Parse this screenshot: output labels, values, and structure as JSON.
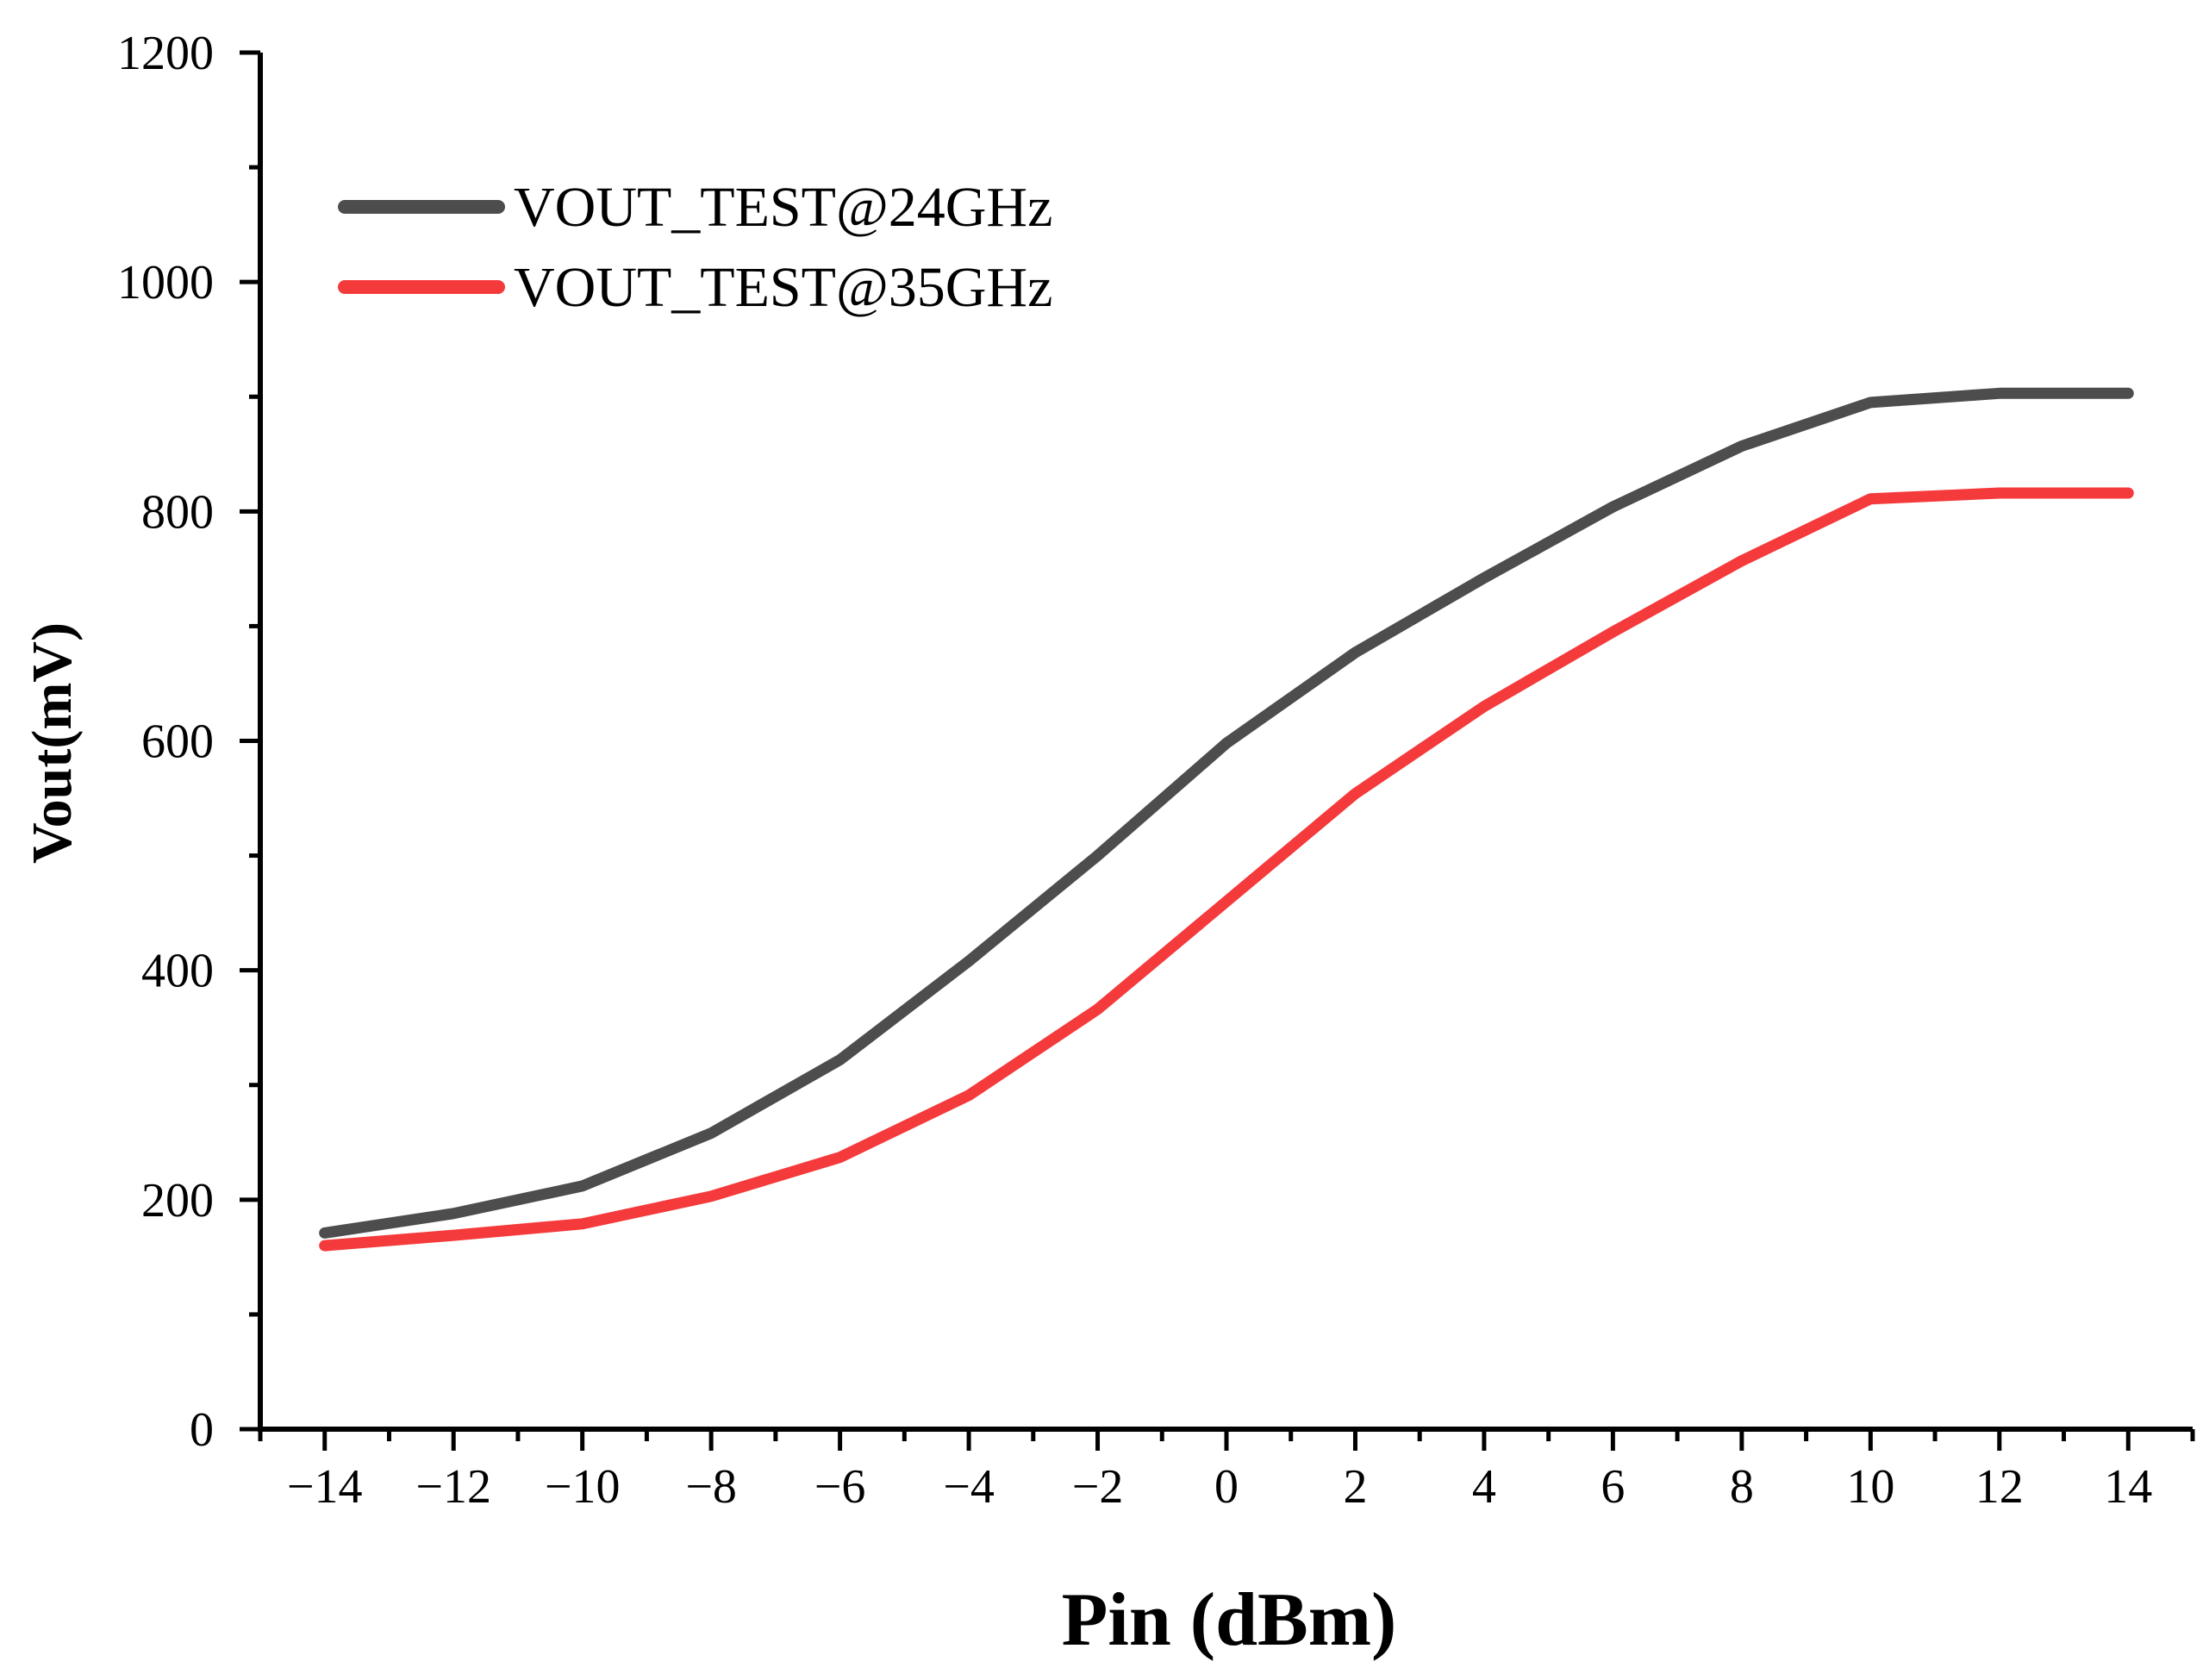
{
  "chart_data": {
    "type": "line",
    "title": "",
    "xlabel": "Pin (dBm)",
    "ylabel": "Vout(mV)",
    "xlim": [
      -15,
      15
    ],
    "ylim": [
      0,
      1200
    ],
    "x_ticks": [
      -14,
      -12,
      -10,
      -8,
      -6,
      -4,
      -2,
      0,
      2,
      4,
      6,
      8,
      10,
      12,
      14
    ],
    "x_tick_labels": [
      "−14",
      "−12",
      "−10",
      "−8",
      "−6",
      "−4",
      "−2",
      "0",
      "2",
      "4",
      "6",
      "8",
      "10",
      "12",
      "14"
    ],
    "y_ticks": [
      0,
      200,
      400,
      600,
      800,
      1000,
      1200
    ],
    "y_tick_labels": [
      "0",
      "200",
      "400",
      "600",
      "800",
      "1000",
      "1200"
    ],
    "grid": false,
    "legend_position": "top-left",
    "x": [
      -14,
      -12,
      -10,
      -8,
      -6,
      -4,
      -2,
      0,
      2,
      4,
      6,
      8,
      10,
      12,
      14
    ],
    "series": [
      {
        "name": "VOUT_TEST@24GHz",
        "color": "#4d4d4d",
        "values": [
          171,
          188,
          212,
          258,
          322,
          408,
          500,
          598,
          677,
          742,
          804,
          857,
          895,
          903,
          903
        ]
      },
      {
        "name": "VOUT_TEST@35GHz",
        "color": "#f53a3c",
        "values": [
          160,
          169,
          179,
          203,
          237,
          291,
          366,
          460,
          554,
          630,
          695,
          757,
          811,
          816,
          816
        ]
      }
    ]
  }
}
